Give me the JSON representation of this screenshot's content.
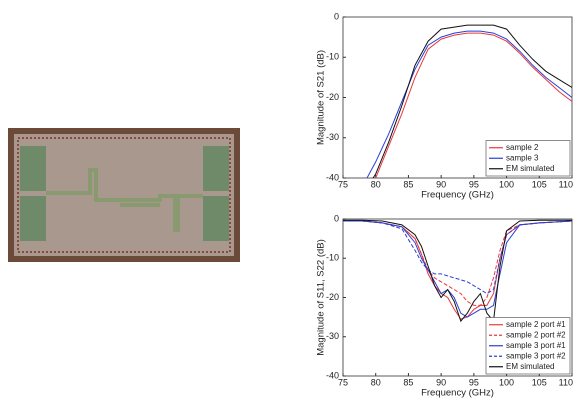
{
  "chart_data": [
    {
      "type": "line",
      "xlabel": "Frequency (GHz)",
      "ylabel": "Magnitude of S21 (dB)",
      "xlim": [
        75,
        110
      ],
      "xticks": [
        75,
        80,
        85,
        90,
        95,
        100,
        105,
        110
      ],
      "ylim": [
        -40,
        0
      ],
      "yticks": [
        -40,
        -30,
        -20,
        -10,
        0
      ],
      "legend": "lower right",
      "x": [
        78,
        80,
        82,
        84,
        86,
        88,
        90,
        92,
        94,
        96,
        98,
        100,
        102,
        104,
        106,
        108,
        110
      ],
      "series": [
        {
          "name": "sample 2",
          "color": "#e8383d",
          "dash": false,
          "values": [
            -46,
            -40,
            -32,
            -24,
            -15,
            -8,
            -5.5,
            -4.5,
            -4,
            -4,
            -4.5,
            -6,
            -9,
            -12.5,
            -15.5,
            -18.5,
            -21
          ]
        },
        {
          "name": "sample 3",
          "color": "#2b3fd6",
          "dash": false,
          "values": [
            -42,
            -36,
            -29,
            -21,
            -13,
            -7,
            -5,
            -4,
            -3.5,
            -3.5,
            -4,
            -5.5,
            -8.5,
            -12,
            -15,
            -17.5,
            -20
          ]
        },
        {
          "name": "EM simulated",
          "color": "#111111",
          "dash": false,
          "values": [
            -44,
            -39,
            -31,
            -22,
            -12,
            -6,
            -3,
            -2.5,
            -2,
            -2,
            -2,
            -3,
            -7,
            -10.5,
            -13.5,
            -15.5,
            -17.5
          ]
        }
      ]
    },
    {
      "type": "line",
      "xlabel": "Frequency (GHz)",
      "ylabel": "Magnitude of S11, S22 (dB)",
      "xlim": [
        75,
        110
      ],
      "xticks": [
        75,
        80,
        85,
        90,
        95,
        100,
        105,
        110
      ],
      "ylim": [
        -40,
        0
      ],
      "yticks": [
        -40,
        -30,
        -20,
        -10,
        0
      ],
      "legend": "lower right",
      "x": [
        75,
        78,
        81,
        84,
        86,
        87,
        88,
        89,
        90,
        91,
        92,
        93,
        94,
        95,
        96,
        97,
        98,
        99,
        100,
        102,
        105,
        110
      ],
      "series": [
        {
          "name": "sample 2 port #1",
          "color": "#e8383d",
          "dash": false,
          "values": [
            -0.5,
            -0.5,
            -1,
            -2,
            -5,
            -9,
            -14,
            -17,
            -19,
            -20,
            -23,
            -25.5,
            -25,
            -23,
            -22,
            -22,
            -19,
            -10,
            -4,
            -1.5,
            -1,
            -0.5
          ]
        },
        {
          "name": "sample 2 port #2",
          "color": "#e8383d",
          "dash": true,
          "values": [
            -0.5,
            -0.5,
            -1,
            -2,
            -5,
            -9,
            -13,
            -15,
            -16,
            -17,
            -18,
            -19,
            -21,
            -22,
            -22,
            -20,
            -15,
            -8,
            -3,
            -1.5,
            -1,
            -0.5
          ]
        },
        {
          "name": "sample 3 port #1",
          "color": "#2b3fd6",
          "dash": false,
          "values": [
            -0.5,
            -0.5,
            -1,
            -2,
            -6,
            -10,
            -13,
            -16,
            -19,
            -18,
            -20,
            -24,
            -25,
            -24,
            -23,
            -23,
            -22,
            -14,
            -6,
            -1.5,
            -1,
            -0.5
          ]
        },
        {
          "name": "sample 3 port #2",
          "color": "#2b3fd6",
          "dash": true,
          "values": [
            -0.5,
            -0.5,
            -1,
            -2.5,
            -8,
            -11,
            -13,
            -14,
            -14,
            -14.5,
            -15,
            -15.5,
            -16,
            -17,
            -18,
            -19,
            -18,
            -10,
            -4,
            -1.5,
            -1,
            -0.5
          ]
        },
        {
          "name": "EM simulated",
          "color": "#111111",
          "dash": false,
          "values": [
            -0.3,
            -0.3,
            -0.5,
            -1.5,
            -4,
            -7,
            -12,
            -17,
            -20,
            -18,
            -21,
            -26,
            -24,
            -21,
            -19,
            -24,
            -26,
            -12,
            -3,
            -0.5,
            -0.3,
            -0.3
          ]
        }
      ]
    }
  ]
}
